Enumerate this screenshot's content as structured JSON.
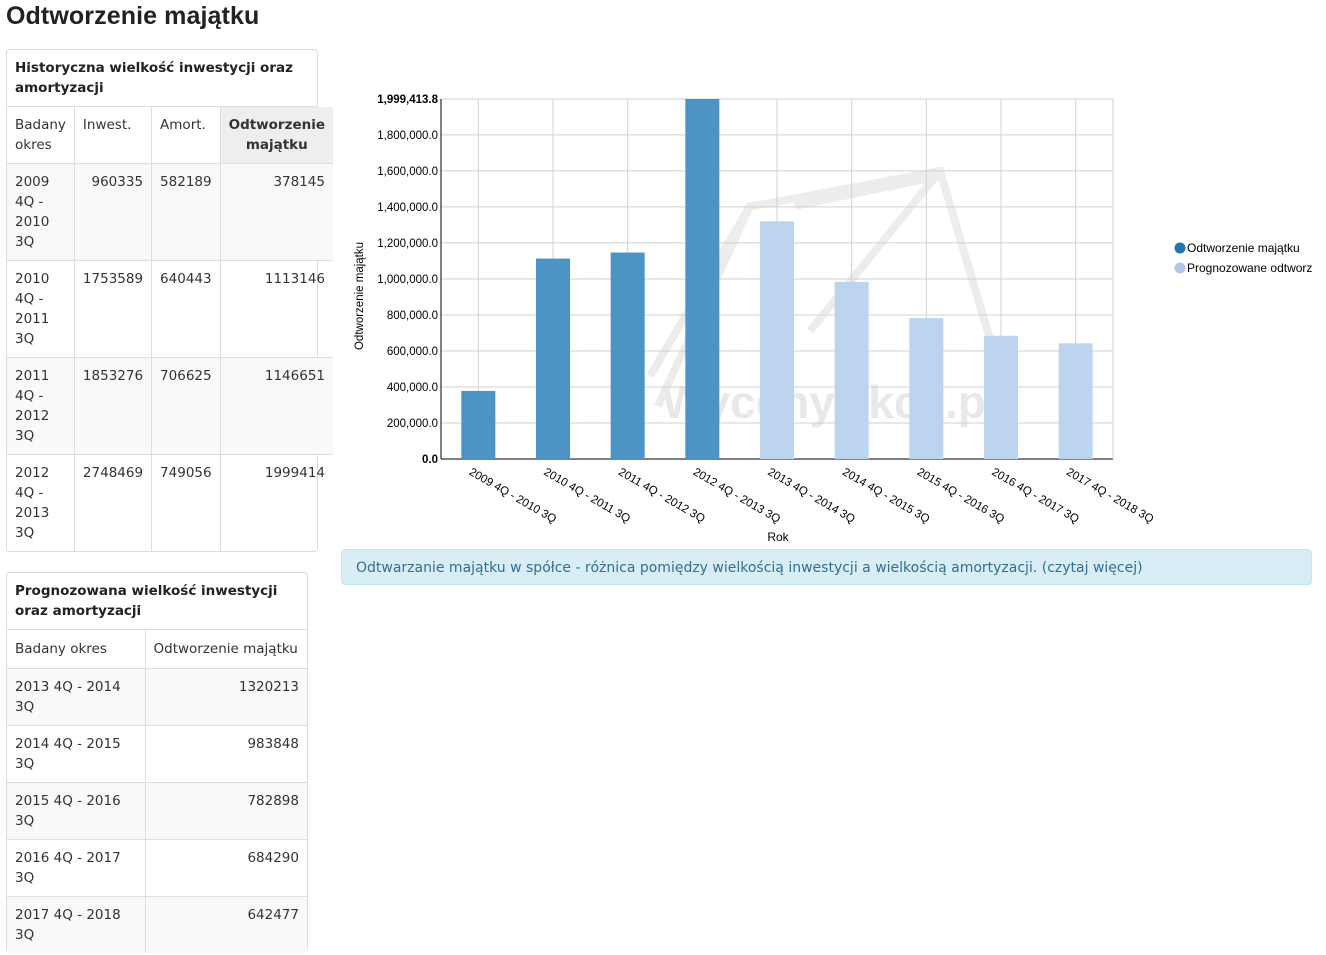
{
  "page": {
    "title": "Odtworzenie majątku"
  },
  "historical": {
    "heading": "Historyczna wielkość inwestycji oraz amortyzacji",
    "headers": [
      "Badany okres",
      "Inwest.",
      "Amort.",
      "Odtworzenie majątku"
    ],
    "rows": [
      {
        "period": "2009 4Q - 2010 3Q",
        "invest": "960335",
        "amort": "582189",
        "value": "378145"
      },
      {
        "period": "2010 4Q - 2011 3Q",
        "invest": "1753589",
        "amort": "640443",
        "value": "1113146"
      },
      {
        "period": "2011 4Q - 2012 3Q",
        "invest": "1853276",
        "amort": "706625",
        "value": "1146651"
      },
      {
        "period": "2012 4Q - 2013 3Q",
        "invest": "2748469",
        "amort": "749056",
        "value": "1999414"
      }
    ]
  },
  "forecast": {
    "heading": "Prognozowana wielkość inwestycji oraz amortyzacji",
    "headers": [
      "Badany okres",
      "Odtworzenie majątku"
    ],
    "rows": [
      {
        "period": "2013 4Q - 2014 3Q",
        "value": "1320213"
      },
      {
        "period": "2014 4Q - 2015 3Q",
        "value": "983848"
      },
      {
        "period": "2015 4Q - 2016 3Q",
        "value": "782898"
      },
      {
        "period": "2016 4Q - 2017 3Q",
        "value": "684290"
      },
      {
        "period": "2017 4Q - 2018 3Q",
        "value": "642477"
      }
    ]
  },
  "info": {
    "text": "Odtwarzanie majątku w spółce - różnica pomiędzy wielkością inwestycji a wielkością amortyzacji.",
    "link": "(czytaj więcej)"
  },
  "watermark": "WycenyAkcji.pl",
  "chart_data": {
    "type": "bar",
    "xlabel": "Rok",
    "ylabel": "Odtworzenie majątku",
    "ylim": [
      0,
      1999413.8
    ],
    "yticks": [
      "0.0",
      "200,000.0",
      "400,000.0",
      "600,000.0",
      "800,000.0",
      "1,000,000.0",
      "1,200,000.0",
      "1,400,000.0",
      "1,600,000.0",
      "1,800,000.0"
    ],
    "ytick_values": [
      0,
      200000,
      400000,
      600000,
      800000,
      1000000,
      1200000,
      1400000,
      1600000,
      1800000
    ],
    "ymax_label": "1,999,413.8",
    "grid": true,
    "legend_position": "right",
    "categories": [
      "2009 4Q - 2010 3Q",
      "2010 4Q - 2011 3Q",
      "2011 4Q - 2012 3Q",
      "2012 4Q - 2013 3Q",
      "2013 4Q - 2014 3Q",
      "2014 4Q - 2015 3Q",
      "2015 4Q - 2016 3Q",
      "2016 4Q - 2017 3Q",
      "2017 4Q - 2018 3Q"
    ],
    "series": [
      {
        "name": "Odtworzenie majątku",
        "color": "#4d94c6",
        "values": [
          378145,
          1113146,
          1146651,
          1999414,
          null,
          null,
          null,
          null,
          null
        ]
      },
      {
        "name": "Prognozowane odtworz",
        "color": "#bdd4ee",
        "values": [
          null,
          null,
          null,
          null,
          1320213,
          983848,
          782898,
          684290,
          642477
        ]
      }
    ]
  }
}
